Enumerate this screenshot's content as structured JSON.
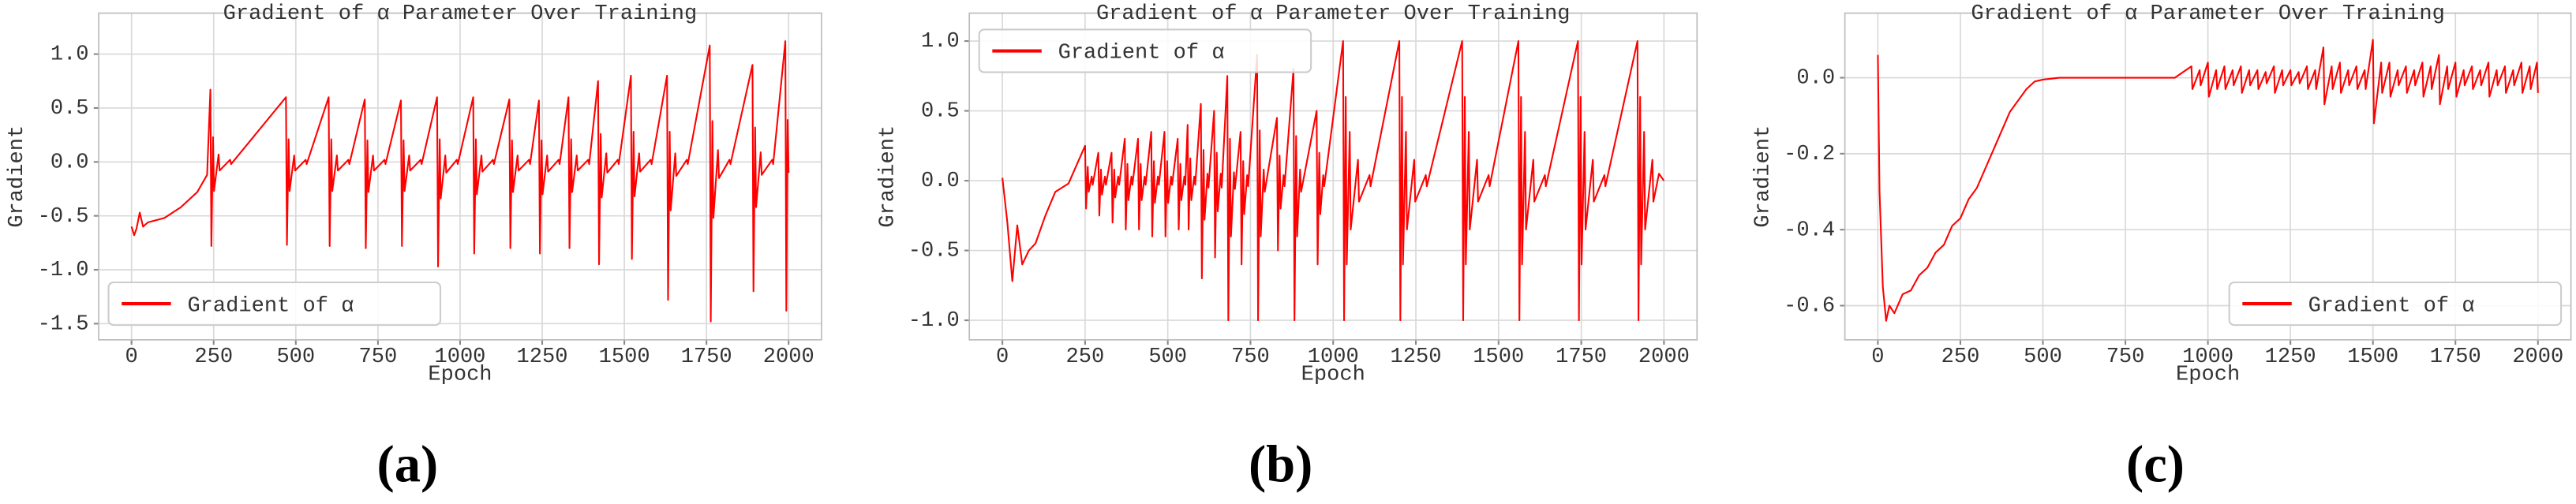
{
  "chart_data": [
    {
      "type": "line",
      "title": "Gradient of α Parameter Over Training",
      "xlabel": "Epoch",
      "ylabel": "Gradient",
      "caption": "(a)",
      "xlim": [
        -100,
        2100
      ],
      "ylim": [
        -1.65,
        1.38
      ],
      "xticks": [
        0,
        250,
        500,
        750,
        1000,
        1250,
        1500,
        1750,
        2000
      ],
      "yticks": [
        -1.5,
        {
          "value": -1,
          "label": "-1.0"
        },
        -0.5,
        {
          "value": 0,
          "label": "0.0"
        },
        0.5,
        {
          "value": 1,
          "label": "1.0"
        }
      ],
      "grid": true,
      "legend": "lower left",
      "x": [
        0,
        8,
        15,
        25,
        35,
        50,
        100,
        150,
        200,
        230,
        240,
        243,
        248,
        251,
        265,
        268,
        300,
        303,
        470,
        473,
        478,
        481,
        495,
        498,
        530,
        533,
        600,
        603,
        608,
        611,
        625,
        628,
        660,
        663,
        710,
        713,
        718,
        721,
        735,
        738,
        770,
        773,
        820,
        823,
        828,
        831,
        845,
        848,
        880,
        883,
        930,
        933,
        938,
        941,
        955,
        958,
        990,
        993,
        1040,
        1043,
        1048,
        1051,
        1065,
        1068,
        1100,
        1103,
        1150,
        1153,
        1158,
        1161,
        1175,
        1178,
        1210,
        1213,
        1240,
        1243,
        1248,
        1251,
        1265,
        1268,
        1300,
        1303,
        1330,
        1333,
        1338,
        1341,
        1355,
        1358,
        1390,
        1393,
        1420,
        1423,
        1428,
        1431,
        1445,
        1448,
        1480,
        1483,
        1520,
        1523,
        1528,
        1531,
        1545,
        1548,
        1580,
        1583,
        1630,
        1633,
        1638,
        1641,
        1655,
        1658,
        1690,
        1693,
        1760,
        1763,
        1768,
        1771,
        1785,
        1788,
        1820,
        1823,
        1890,
        1893,
        1898,
        1901,
        1915,
        1918,
        1950,
        1953,
        1990,
        1993,
        1997,
        2000
      ],
      "series": [
        {
          "name": "Gradient of α",
          "color": "#ff0000",
          "values": [
            -0.6,
            -0.68,
            -0.62,
            -0.47,
            -0.6,
            -0.56,
            -0.52,
            -0.42,
            -0.28,
            -0.12,
            0.67,
            -0.78,
            0.23,
            -0.27,
            0.07,
            -0.08,
            0.02,
            -0.02,
            0.6,
            -0.77,
            0.21,
            -0.27,
            0.06,
            -0.08,
            0.02,
            -0.02,
            0.6,
            -0.78,
            0.21,
            -0.27,
            0.06,
            -0.08,
            0.02,
            -0.02,
            0.58,
            -0.8,
            0.2,
            -0.28,
            0.06,
            -0.08,
            0.02,
            -0.02,
            0.57,
            -0.78,
            0.2,
            -0.27,
            0.06,
            -0.08,
            0.02,
            -0.02,
            0.6,
            -0.97,
            0.21,
            -0.34,
            0.06,
            -0.1,
            0.02,
            -0.02,
            0.6,
            -0.85,
            0.21,
            -0.3,
            0.06,
            -0.09,
            0.02,
            -0.02,
            0.58,
            -0.8,
            0.2,
            -0.28,
            0.06,
            -0.08,
            0.02,
            -0.02,
            0.57,
            -0.85,
            0.2,
            -0.3,
            0.06,
            -0.09,
            0.02,
            -0.02,
            0.6,
            -0.8,
            0.21,
            -0.28,
            0.06,
            -0.08,
            0.02,
            -0.02,
            0.75,
            -0.95,
            0.26,
            -0.33,
            0.08,
            -0.1,
            0.02,
            -0.02,
            0.8,
            -0.9,
            0.28,
            -0.32,
            0.08,
            -0.09,
            0.02,
            -0.02,
            0.8,
            -1.28,
            0.28,
            -0.45,
            0.08,
            -0.13,
            0.02,
            -0.02,
            1.08,
            -1.48,
            0.38,
            -0.52,
            0.11,
            -0.15,
            0.02,
            -0.02,
            0.9,
            -1.2,
            0.32,
            -0.42,
            0.09,
            -0.12,
            0.02,
            -0.02,
            1.12,
            -1.38,
            0.39,
            -0.1
          ]
        }
      ]
    },
    {
      "type": "line",
      "title": "Gradient of α Parameter Over Training",
      "xlabel": "Epoch",
      "ylabel": "Gradient",
      "caption": "(b)",
      "xlim": [
        -100,
        2100
      ],
      "ylim": [
        -1.14,
        1.2
      ],
      "xticks": [
        0,
        250,
        500,
        750,
        1000,
        1250,
        1500,
        1750,
        2000
      ],
      "yticks": [
        {
          "value": -1,
          "label": "-1.0"
        },
        -0.5,
        {
          "value": 0,
          "label": "0.0"
        },
        0.5,
        {
          "value": 1,
          "label": "1.0"
        }
      ],
      "grid": true,
      "legend": "upper left",
      "x": [
        0,
        15,
        30,
        45,
        60,
        80,
        100,
        130,
        160,
        200,
        250,
        253,
        258,
        261,
        270,
        273,
        290,
        293,
        298,
        301,
        310,
        313,
        330,
        333,
        338,
        341,
        350,
        353,
        370,
        373,
        378,
        381,
        390,
        393,
        410,
        413,
        418,
        421,
        430,
        433,
        450,
        453,
        458,
        461,
        470,
        473,
        490,
        493,
        498,
        501,
        510,
        513,
        530,
        533,
        538,
        541,
        550,
        553,
        560,
        563,
        568,
        571,
        580,
        583,
        600,
        603,
        608,
        611,
        620,
        623,
        640,
        643,
        648,
        651,
        660,
        663,
        680,
        683,
        688,
        691,
        700,
        703,
        720,
        723,
        728,
        731,
        740,
        743,
        770,
        773,
        778,
        781,
        790,
        793,
        830,
        833,
        838,
        841,
        850,
        853,
        880,
        883,
        888,
        891,
        900,
        903,
        950,
        953,
        958,
        961,
        970,
        973,
        1030,
        1033,
        1038,
        1041,
        1050,
        1053,
        1075,
        1078,
        1110,
        1113,
        1200,
        1203,
        1208,
        1211,
        1220,
        1223,
        1245,
        1248,
        1280,
        1283,
        1390,
        1393,
        1398,
        1401,
        1410,
        1413,
        1435,
        1438,
        1470,
        1473,
        1560,
        1563,
        1568,
        1571,
        1580,
        1583,
        1605,
        1608,
        1640,
        1643,
        1740,
        1743,
        1748,
        1751,
        1760,
        1763,
        1785,
        1788,
        1820,
        1823,
        1920,
        1923,
        1928,
        1931,
        1940,
        1943,
        1965,
        1968,
        1985,
        2000
      ],
      "series": [
        {
          "name": "Gradient of α",
          "color": "#ff0000",
          "values": [
            0.02,
            -0.3,
            -0.72,
            -0.32,
            -0.6,
            -0.5,
            -0.45,
            -0.25,
            -0.08,
            -0.02,
            0.25,
            -0.2,
            0.1,
            -0.08,
            0.03,
            -0.03,
            0.2,
            -0.25,
            0.08,
            -0.1,
            0.03,
            -0.03,
            0.2,
            -0.3,
            0.08,
            -0.12,
            0.03,
            -0.03,
            0.3,
            -0.35,
            0.12,
            -0.14,
            0.03,
            -0.03,
            0.3,
            -0.35,
            0.12,
            -0.14,
            0.03,
            -0.03,
            0.35,
            -0.4,
            0.14,
            -0.16,
            0.03,
            -0.03,
            0.35,
            -0.4,
            0.14,
            -0.16,
            0.03,
            -0.03,
            0.3,
            -0.35,
            0.12,
            -0.14,
            0.03,
            -0.03,
            0.4,
            -0.35,
            0.16,
            -0.14,
            0.03,
            -0.03,
            0.55,
            -0.7,
            0.22,
            -0.28,
            0.05,
            -0.05,
            0.5,
            -0.55,
            0.2,
            -0.22,
            0.05,
            -0.05,
            0.75,
            -1,
            0.3,
            -0.4,
            0.06,
            -0.06,
            0.35,
            -0.6,
            0.14,
            -0.24,
            0.04,
            -0.04,
            0.9,
            -1,
            0.36,
            -0.4,
            0.08,
            -0.08,
            0.45,
            -0.5,
            0.18,
            -0.2,
            0.04,
            -0.04,
            0.8,
            -1,
            0.32,
            -0.4,
            0.08,
            -0.08,
            0.5,
            -0.6,
            0.2,
            -0.24,
            0.04,
            -0.04,
            1,
            -1,
            0.6,
            -0.6,
            0.35,
            -0.35,
            0.15,
            -0.15,
            0.04,
            -0.04,
            1,
            -1,
            0.6,
            -0.6,
            0.35,
            -0.35,
            0.15,
            -0.15,
            0.04,
            -0.04,
            1,
            -1,
            0.6,
            -0.6,
            0.35,
            -0.35,
            0.15,
            -0.15,
            0.04,
            -0.04,
            1,
            -1,
            0.6,
            -0.6,
            0.35,
            -0.35,
            0.15,
            -0.15,
            0.04,
            -0.04,
            1,
            -1,
            0.6,
            -0.6,
            0.35,
            -0.35,
            0.15,
            -0.15,
            0.04,
            -0.04,
            1,
            -1,
            0.6,
            -0.6,
            0.35,
            -0.35,
            0.15,
            -0.15,
            0.05,
            0
          ]
        }
      ]
    },
    {
      "type": "line",
      "title": "Gradient of α Parameter Over Training",
      "xlabel": "Epoch",
      "ylabel": "Gradient",
      "caption": "(c)",
      "xlim": [
        -100,
        2100
      ],
      "ylim": [
        -0.69,
        0.17
      ],
      "xticks": [
        0,
        250,
        500,
        750,
        1000,
        1250,
        1500,
        1750,
        2000
      ],
      "yticks": [
        -0.6,
        -0.4,
        -0.2,
        {
          "value": 0,
          "label": "0.0"
        }
      ],
      "grid": true,
      "legend": "lower right",
      "x": [
        0,
        5,
        15,
        25,
        35,
        50,
        75,
        100,
        125,
        150,
        175,
        200,
        225,
        250,
        275,
        300,
        325,
        350,
        375,
        400,
        425,
        450,
        475,
        500,
        550,
        600,
        700,
        800,
        900,
        950,
        953,
        975,
        978,
        1000,
        1003,
        1025,
        1028,
        1050,
        1053,
        1075,
        1078,
        1100,
        1103,
        1125,
        1128,
        1150,
        1153,
        1175,
        1178,
        1200,
        1203,
        1225,
        1228,
        1250,
        1253,
        1275,
        1278,
        1300,
        1303,
        1325,
        1328,
        1350,
        1353,
        1375,
        1378,
        1400,
        1403,
        1425,
        1428,
        1450,
        1453,
        1475,
        1478,
        1500,
        1503,
        1525,
        1528,
        1550,
        1553,
        1575,
        1578,
        1600,
        1603,
        1625,
        1628,
        1650,
        1653,
        1675,
        1678,
        1700,
        1703,
        1725,
        1728,
        1750,
        1753,
        1775,
        1778,
        1800,
        1803,
        1825,
        1828,
        1850,
        1853,
        1875,
        1878,
        1900,
        1903,
        1925,
        1928,
        1950,
        1953,
        1975,
        1978,
        1997,
        2000
      ],
      "series": [
        {
          "name": "Gradient of α",
          "color": "#ff0000",
          "values": [
            0.06,
            -0.3,
            -0.55,
            -0.64,
            -0.6,
            -0.62,
            -0.57,
            -0.56,
            -0.52,
            -0.5,
            -0.46,
            -0.44,
            -0.39,
            -0.37,
            -0.32,
            -0.29,
            -0.24,
            -0.19,
            -0.14,
            -0.09,
            -0.06,
            -0.03,
            -0.01,
            -0.005,
            0,
            0,
            0,
            0,
            0,
            0.03,
            -0.03,
            0.02,
            -0.02,
            0.04,
            -0.05,
            0.02,
            -0.03,
            0.03,
            -0.03,
            0.02,
            -0.02,
            0.03,
            -0.04,
            0.02,
            -0.02,
            0.02,
            -0.03,
            0.015,
            -0.015,
            0.03,
            -0.04,
            0.02,
            -0.02,
            0.02,
            -0.02,
            0.015,
            -0.015,
            0.03,
            -0.03,
            0.02,
            -0.03,
            0.08,
            -0.07,
            0.03,
            -0.03,
            0.04,
            -0.04,
            0.02,
            -0.02,
            0.03,
            -0.03,
            0.02,
            -0.03,
            0.1,
            -0.12,
            0.04,
            -0.04,
            0.04,
            -0.05,
            0.02,
            -0.02,
            0.03,
            -0.04,
            0.02,
            -0.02,
            0.04,
            -0.05,
            0.03,
            -0.03,
            0.06,
            -0.07,
            0.03,
            -0.03,
            0.04,
            -0.05,
            0.02,
            -0.02,
            0.03,
            -0.03,
            0.02,
            -0.02,
            0.04,
            -0.05,
            0.02,
            -0.02,
            0.03,
            -0.04,
            0.02,
            -0.02,
            0.04,
            -0.04,
            0.03,
            -0.03,
            0.04,
            -0.04
          ]
        }
      ]
    }
  ]
}
